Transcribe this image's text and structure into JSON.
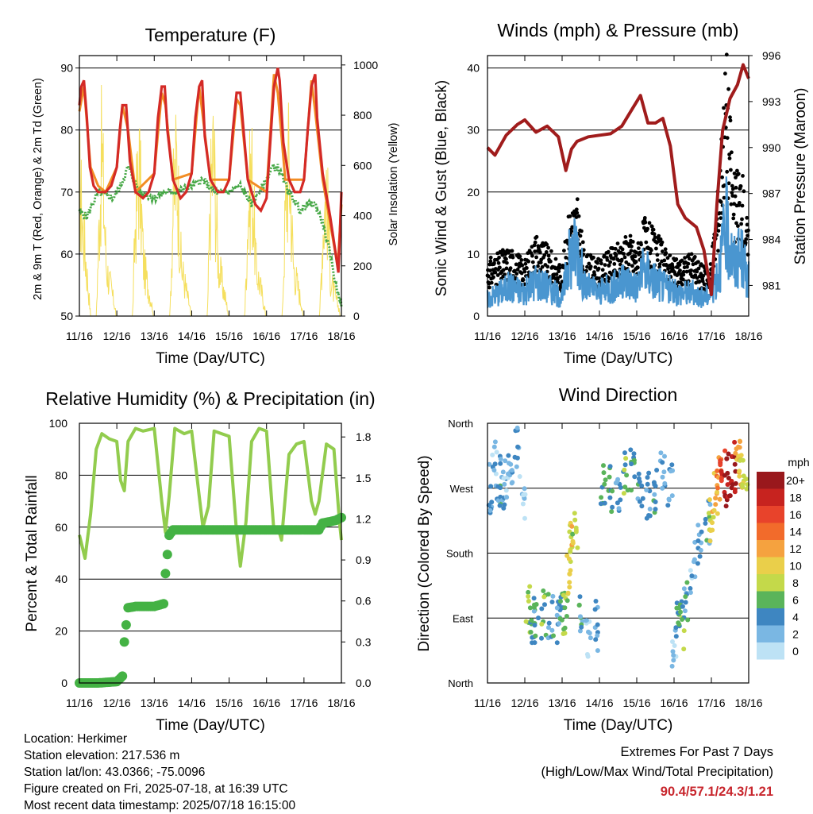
{
  "footer": {
    "location": "Location: Herkimer",
    "elevation": "Station elevation: 217.536 m",
    "latlon": "Station lat/lon: 43.0366; -75.0096",
    "created": "Figure created on Fri, 2025-07-18, at 16:39 UTC",
    "recent": "Most recent data timestamp: 2025/07/18 16:15:00",
    "extremes_title": "Extremes For Past 7 Days",
    "extremes_sub": "(High/Low/Max Wind/Total Precipitation)",
    "extremes_values": "90.4/57.1/24.3/1.21"
  },
  "colors": {
    "temp_2m": "#d42a26",
    "temp_9m": "#f28d24",
    "dewpoint": "#46a846",
    "solar": "#f5df5e",
    "wind": "#4a96d0",
    "gust": "#000000",
    "pressure": "#a01c1c",
    "rh": "#92cc4e",
    "precip": "#44b244",
    "extremes": "#c8262d"
  },
  "chart_data": [
    {
      "type": "line",
      "title": "Temperature (F)",
      "xlabel": "Time (Day/UTC)",
      "ylabel": "2m & 9m T (Red, Orange) & 2m Td (Green)",
      "y2label": "Solar Insolation (Yellow)",
      "xticks": [
        "11/16",
        "12/16",
        "13/16",
        "14/16",
        "15/16",
        "16/16",
        "17/16",
        "18/16"
      ],
      "yticks": [
        "50",
        "60",
        "70",
        "80",
        "90"
      ],
      "y2ticks": [
        "0",
        "200",
        "400",
        "600",
        "800",
        "1000"
      ],
      "ylim": [
        50,
        92
      ],
      "y2lim": [
        0,
        1000
      ],
      "xlim": [
        0,
        7
      ],
      "series": [
        {
          "name": "2m T",
          "axis": "left",
          "x": [
            0,
            0.05,
            0.12,
            0.2,
            0.28,
            0.38,
            0.5,
            0.7,
            0.85,
            1.0,
            1.08,
            1.15,
            1.25,
            1.35,
            1.5,
            1.7,
            1.85,
            2.0,
            2.1,
            2.2,
            2.28,
            2.35,
            2.5,
            2.7,
            2.85,
            3.0,
            3.1,
            3.2,
            3.28,
            3.35,
            3.5,
            3.7,
            3.85,
            4.0,
            4.1,
            4.2,
            4.3,
            4.4,
            4.5,
            4.7,
            4.85,
            5.0,
            5.1,
            5.2,
            5.3,
            5.35,
            5.45,
            5.6,
            5.75,
            5.9,
            6.0,
            6.1,
            6.2,
            6.3,
            6.35,
            6.5,
            6.7,
            6.85,
            6.92,
            7.0
          ],
          "values": [
            84,
            87,
            88,
            82,
            74,
            71,
            70,
            70,
            71,
            74,
            80,
            84,
            84,
            75,
            70,
            69,
            70,
            73,
            82,
            87,
            87,
            80,
            72,
            69,
            70,
            73,
            82,
            87,
            88,
            79,
            72,
            70,
            70,
            72,
            80,
            86,
            86,
            79,
            72,
            68,
            67,
            69,
            78,
            87,
            90,
            88,
            78,
            72,
            70,
            70,
            72,
            80,
            87,
            89,
            82,
            73,
            66,
            60,
            57,
            70
          ]
        },
        {
          "name": "9m T",
          "axis": "left",
          "x": [
            0,
            0.12,
            0.3,
            0.5,
            0.7,
            1.0,
            1.15,
            1.3,
            1.5,
            2.0,
            2.2,
            2.3,
            2.5,
            3.0,
            3.2,
            3.3,
            3.5,
            4.0,
            4.2,
            4.3,
            4.5,
            5.0,
            5.2,
            5.3,
            5.5,
            6.0,
            6.2,
            6.3,
            6.5,
            6.9,
            7.0
          ],
          "values": [
            83,
            87,
            74,
            71,
            70,
            74,
            84,
            80,
            70,
            73,
            86,
            84,
            72,
            73,
            87,
            82,
            72,
            72,
            85,
            84,
            72,
            70,
            89,
            86,
            72,
            72,
            88,
            83,
            72,
            58,
            68
          ]
        },
        {
          "name": "2m Td",
          "axis": "left",
          "x": [
            0,
            0.2,
            0.5,
            0.9,
            1.1,
            1.3,
            1.6,
            2.0,
            2.3,
            2.6,
            3.0,
            3.3,
            3.6,
            4.0,
            4.3,
            4.6,
            5.0,
            5.15,
            5.3,
            5.6,
            5.9,
            6.1,
            6.3,
            6.5,
            6.7,
            6.85,
            7.0
          ],
          "values": [
            67,
            66,
            70,
            69,
            71,
            74,
            70,
            69,
            70,
            70,
            71,
            72,
            70,
            70,
            71,
            68,
            72,
            74,
            74,
            70,
            67,
            68,
            68,
            65,
            60,
            55,
            52
          ]
        },
        {
          "name": "Solar Insolation",
          "axis": "right",
          "x": [
            0.0,
            0.3,
            0.45,
            0.52,
            0.6,
            0.72,
            1.0,
            1.25,
            1.42,
            1.5,
            1.6,
            1.72,
            2.0,
            2.28,
            2.42,
            2.5,
            2.6,
            2.72,
            3.0,
            3.28,
            3.42,
            3.5,
            3.58,
            3.72,
            4.0,
            4.28,
            4.42,
            4.5,
            4.6,
            4.72,
            5.0,
            5.28,
            5.42,
            5.5,
            5.6,
            5.72,
            6.0,
            6.28,
            6.42,
            6.5,
            6.6,
            6.72,
            7.0
          ],
          "values": [
            800,
            0,
            0,
            500,
            1000,
            300,
            0,
            0,
            0,
            600,
            900,
            300,
            0,
            0,
            0,
            650,
            950,
            300,
            0,
            0,
            0,
            700,
            1000,
            300,
            0,
            0,
            0,
            600,
            900,
            300,
            0,
            0,
            0,
            600,
            950,
            300,
            0,
            0,
            0,
            500,
            800,
            200,
            0
          ]
        }
      ]
    },
    {
      "type": "line",
      "title": "Winds (mph) & Pressure (mb)",
      "xlabel": "Time (Day/UTC)",
      "ylabel": "Sonic Wind & Gust (Blue, Black)",
      "y2label": "Station Pressure (Maroon)",
      "xticks": [
        "11/16",
        "12/16",
        "13/16",
        "14/16",
        "15/16",
        "16/16",
        "17/16",
        "18/16"
      ],
      "yticks": [
        "0",
        "10",
        "20",
        "30",
        "40"
      ],
      "y2ticks": [
        "981",
        "984",
        "987",
        "990",
        "993",
        "996"
      ],
      "ylim": [
        0,
        42
      ],
      "y2lim": [
        979,
        996
      ],
      "xlim": [
        0,
        7
      ],
      "series": [
        {
          "name": "Station Pressure",
          "axis": "right",
          "x": [
            0,
            0.2,
            0.5,
            0.8,
            1.0,
            1.3,
            1.6,
            1.9,
            2.1,
            2.25,
            2.4,
            2.7,
            3.0,
            3.3,
            3.6,
            3.9,
            4.1,
            4.3,
            4.5,
            4.7,
            4.9,
            5.1,
            5.3,
            5.6,
            5.8,
            6.0,
            6.15,
            6.3,
            6.5,
            6.7,
            6.85,
            7.0
          ],
          "values": [
            990,
            989.5,
            990.8,
            991.5,
            991.8,
            991,
            991.4,
            990.7,
            988.5,
            989.9,
            990.4,
            990.7,
            990.8,
            990.9,
            991.4,
            992.6,
            993.4,
            991.6,
            991.6,
            991.9,
            990.1,
            986.3,
            985.4,
            984.8,
            983.3,
            980.4,
            986.3,
            991.1,
            993.2,
            994.1,
            995.4,
            994.5
          ]
        },
        {
          "name": "Wind",
          "axis": "left",
          "x": [
            0,
            0.3,
            0.6,
            1.0,
            1.3,
            1.6,
            2.0,
            2.2,
            2.4,
            2.6,
            3.0,
            3.4,
            3.8,
            4.0,
            4.2,
            4.5,
            5.0,
            5.5,
            5.8,
            6.0,
            6.2,
            6.4,
            6.6,
            6.8,
            7.0
          ],
          "values": [
            3,
            4,
            5,
            4,
            6,
            5,
            3,
            10,
            12,
            5,
            4,
            5,
            6,
            5,
            8,
            6,
            4,
            4,
            3,
            4,
            8,
            15,
            9,
            10,
            6
          ]
        },
        {
          "name": "Gust",
          "axis": "left",
          "x": [
            0,
            0.3,
            0.6,
            1.0,
            1.3,
            1.6,
            2.0,
            2.2,
            2.4,
            2.6,
            3.0,
            3.4,
            3.8,
            4.0,
            4.2,
            4.5,
            5.0,
            5.5,
            5.8,
            6.0,
            6.2,
            6.4,
            6.6,
            6.8,
            7.0
          ],
          "values": [
            8,
            9,
            10,
            8,
            12,
            10,
            7,
            16,
            17,
            9,
            8,
            10,
            12,
            10,
            14,
            12,
            8,
            9,
            7,
            8,
            20,
            39,
            20,
            22,
            12
          ]
        }
      ]
    },
    {
      "type": "line",
      "title": "Relative Humidity (%) & Precipitation (in)",
      "xlabel": "Time (Day/UTC)",
      "ylabel": "Percent & Total Rainfall",
      "xticks": [
        "11/16",
        "12/16",
        "13/16",
        "14/16",
        "15/16",
        "16/16",
        "17/16",
        "18/16"
      ],
      "yticks": [
        "0",
        "20",
        "40",
        "60",
        "80",
        "100"
      ],
      "y2ticks": [
        "0.0",
        "0.3",
        "0.6",
        "0.9",
        "1.2",
        "1.5",
        "1.8"
      ],
      "ylim": [
        0,
        100
      ],
      "y2lim": [
        0,
        1.9
      ],
      "xlim": [
        0,
        7
      ],
      "series": [
        {
          "name": "RH",
          "axis": "left",
          "x": [
            0,
            0.15,
            0.3,
            0.45,
            0.6,
            0.8,
            1.0,
            1.1,
            1.2,
            1.3,
            1.5,
            1.7,
            2.0,
            2.2,
            2.3,
            2.4,
            2.55,
            2.8,
            3.0,
            3.2,
            3.3,
            3.45,
            3.6,
            3.8,
            4.0,
            4.2,
            4.3,
            4.45,
            4.6,
            4.8,
            5.0,
            5.2,
            5.3,
            5.4,
            5.6,
            5.8,
            6.0,
            6.2,
            6.3,
            6.4,
            6.6,
            6.8,
            6.95,
            7.0
          ],
          "values": [
            57,
            48,
            65,
            90,
            96,
            94,
            93,
            78,
            74,
            93,
            98,
            97,
            98,
            70,
            58,
            72,
            98,
            96,
            97,
            72,
            60,
            68,
            97,
            96,
            95,
            58,
            45,
            62,
            93,
            98,
            97,
            58,
            60,
            55,
            88,
            92,
            93,
            70,
            65,
            70,
            92,
            90,
            62,
            55
          ]
        },
        {
          "name": "Total Precipitation",
          "axis": "right",
          "x": [
            0,
            0.5,
            1.0,
            1.15,
            1.2,
            1.3,
            1.5,
            2.0,
            2.25,
            2.3,
            2.4,
            2.5,
            3.0,
            4.0,
            5.0,
            6.0,
            6.4,
            6.5,
            6.7,
            6.85,
            7.0
          ],
          "values": [
            0,
            0,
            0.01,
            0.05,
            0.3,
            0.55,
            0.56,
            0.56,
            0.58,
            0.8,
            1.08,
            1.12,
            1.12,
            1.12,
            1.12,
            1.12,
            1.12,
            1.17,
            1.18,
            1.19,
            1.21
          ]
        }
      ]
    },
    {
      "type": "scatter",
      "title": "Wind Direction",
      "xlabel": "Time (Day/UTC)",
      "ylabel": "Direction (Colored By Speed)",
      "xticks": [
        "11/16",
        "12/16",
        "13/16",
        "14/16",
        "15/16",
        "16/16",
        "17/16",
        "18/16"
      ],
      "yticks": [
        "North",
        "East",
        "South",
        "West",
        "North"
      ],
      "xlim": [
        0,
        7
      ],
      "ylim": [
        0,
        360
      ],
      "legend": {
        "title": "mph",
        "labels": [
          "20+",
          "18",
          "16",
          "14",
          "12",
          "10",
          "8",
          "6",
          "4",
          "2",
          "0"
        ],
        "colors": [
          "#99181c",
          "#c7231f",
          "#e8432b",
          "#f26b2b",
          "#f5a23f",
          "#eacf4a",
          "#c4d94a",
          "#5ab45a",
          "#3e86c1",
          "#7ab7e3",
          "#bde2f5"
        ]
      },
      "series": [
        {
          "name": "direction",
          "x": [
            0.1,
            0.2,
            0.3,
            0.4,
            0.5,
            0.6,
            0.8,
            1.0,
            1.1,
            1.2,
            1.3,
            1.5,
            1.7,
            1.9,
            2.0,
            2.1,
            2.2,
            2.25,
            2.35,
            2.5,
            2.7,
            2.9,
            3.1,
            3.3,
            3.5,
            3.7,
            3.9,
            4.1,
            4.3,
            4.5,
            4.7,
            4.9,
            5.0,
            5.1,
            5.2,
            5.3,
            5.5,
            5.7,
            5.9,
            6.0,
            6.1,
            6.2,
            6.3,
            6.4,
            6.5,
            6.6,
            6.7,
            6.8,
            6.9
          ],
          "values": [
            270,
            300,
            280,
            260,
            290,
            300,
            320,
            250,
            100,
            90,
            85,
            95,
            90,
            85,
            90,
            100,
            150,
            190,
            210,
            90,
            60,
            80,
            280,
            270,
            260,
            290,
            300,
            280,
            260,
            270,
            300,
            270,
            40,
            90,
            80,
            120,
            160,
            200,
            220,
            230,
            260,
            280,
            290,
            280,
            290,
            300,
            310,
            300,
            280
          ],
          "speeds": [
            4,
            3,
            5,
            4,
            3,
            4,
            3,
            2,
            8,
            6,
            5,
            7,
            5,
            4,
            6,
            8,
            10,
            11,
            9,
            5,
            3,
            4,
            6,
            5,
            4,
            7,
            6,
            5,
            4,
            5,
            3,
            4,
            2,
            6,
            7,
            5,
            3,
            4,
            5,
            10,
            12,
            14,
            18,
            21,
            20,
            19,
            12,
            11,
            9
          ]
        }
      ]
    }
  ]
}
